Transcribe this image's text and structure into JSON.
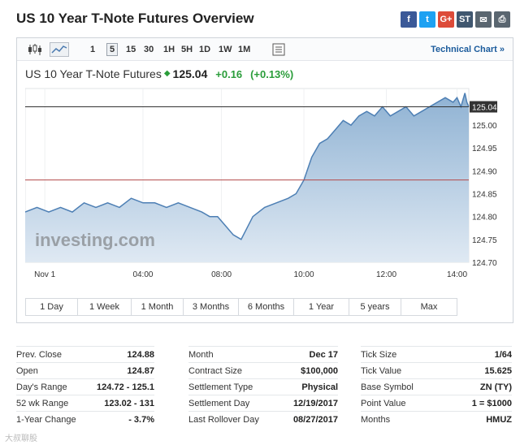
{
  "page": {
    "title": "US 10 Year T-Note Futures Overview"
  },
  "share": [
    {
      "name": "facebook",
      "glyph": "f",
      "color": "#3b5998"
    },
    {
      "name": "twitter",
      "glyph": "t",
      "color": "#1da1f2"
    },
    {
      "name": "google-plus",
      "glyph": "G+",
      "color": "#dd4b39"
    },
    {
      "name": "stocktwits",
      "glyph": "ST",
      "color": "#40576f"
    },
    {
      "name": "email",
      "glyph": "✉",
      "color": "#5a6670"
    },
    {
      "name": "print",
      "glyph": "⎙",
      "color": "#5a6670"
    }
  ],
  "toolbar": {
    "timeframes": [
      "1",
      "5",
      "15",
      "30",
      "1H",
      "5H",
      "1D",
      "1W",
      "1M"
    ],
    "active_timeframe": "5",
    "technical_chart_label": "Technical Chart »"
  },
  "quote": {
    "name": "US 10 Year T-Note Futures",
    "last": "125.04",
    "change": "+0.16",
    "change_pct": "(+0.13%)"
  },
  "chart_data": {
    "type": "area",
    "watermark": "investing.com",
    "x_ticks": [
      "Nov 1",
      "04:00",
      "08:00",
      "10:00",
      "12:00",
      "14:00"
    ],
    "x_tick_hours": [
      0.5,
      3,
      5,
      7.1,
      9.2,
      11.0
    ],
    "y_ticks": [
      "124.70",
      "124.75",
      "124.80",
      "124.85",
      "124.90",
      "124.95",
      "125.00",
      "125.04"
    ],
    "ylim": [
      124.7,
      125.08
    ],
    "xlim": [
      0,
      11.3
    ],
    "last_price_label": "125.04",
    "reference_line": 124.88,
    "last_price_line": 125.04,
    "x": [
      0,
      0.3,
      0.6,
      0.9,
      1.2,
      1.5,
      1.8,
      2.1,
      2.4,
      2.7,
      3.0,
      3.3,
      3.6,
      3.9,
      4.2,
      4.5,
      4.7,
      4.9,
      5.1,
      5.3,
      5.5,
      5.8,
      6.1,
      6.4,
      6.7,
      6.9,
      7.1,
      7.3,
      7.5,
      7.7,
      7.9,
      8.1,
      8.3,
      8.5,
      8.7,
      8.9,
      9.1,
      9.3,
      9.5,
      9.7,
      9.9,
      10.1,
      10.3,
      10.5,
      10.7,
      10.9,
      11.0,
      11.1,
      11.2,
      11.25,
      11.3
    ],
    "values": [
      124.81,
      124.82,
      124.81,
      124.82,
      124.81,
      124.83,
      124.82,
      124.83,
      124.82,
      124.84,
      124.83,
      124.83,
      124.82,
      124.83,
      124.82,
      124.81,
      124.8,
      124.8,
      124.78,
      124.76,
      124.75,
      124.8,
      124.82,
      124.83,
      124.84,
      124.85,
      124.88,
      124.93,
      124.96,
      124.97,
      124.99,
      125.01,
      125.0,
      125.02,
      125.03,
      125.02,
      125.04,
      125.02,
      125.03,
      125.04,
      125.02,
      125.03,
      125.04,
      125.05,
      125.06,
      125.05,
      125.06,
      125.04,
      125.07,
      125.05,
      125.04
    ]
  },
  "ranges": [
    "1 Day",
    "1 Week",
    "1 Month",
    "3 Months",
    "6 Months",
    "1 Year",
    "5 years",
    "Max"
  ],
  "stats": {
    "col1": [
      {
        "k": "Prev. Close",
        "v": "124.88"
      },
      {
        "k": "Open",
        "v": "124.87"
      },
      {
        "k": "Day's Range",
        "v": "124.72 - 125.1"
      },
      {
        "k": "52 wk Range",
        "v": "123.02 - 131"
      },
      {
        "k": "1-Year Change",
        "v": "- 3.7%"
      }
    ],
    "col2": [
      {
        "k": "Month",
        "v": "Dec 17"
      },
      {
        "k": "Contract Size",
        "v": "$100,000"
      },
      {
        "k": "Settlement Type",
        "v": "Physical"
      },
      {
        "k": "Settlement Day",
        "v": "12/19/2017"
      },
      {
        "k": "Last Rollover Day",
        "v": "08/27/2017"
      }
    ],
    "col3": [
      {
        "k": "Tick Size",
        "v": "1/64"
      },
      {
        "k": "Tick Value",
        "v": "15.625"
      },
      {
        "k": "Base Symbol",
        "v": "ZN (TY)"
      },
      {
        "k": "Point Value",
        "v": "1 = $1000"
      },
      {
        "k": "Months",
        "v": "HMUZ"
      }
    ]
  },
  "watermark_bottom": "大叔聊股"
}
